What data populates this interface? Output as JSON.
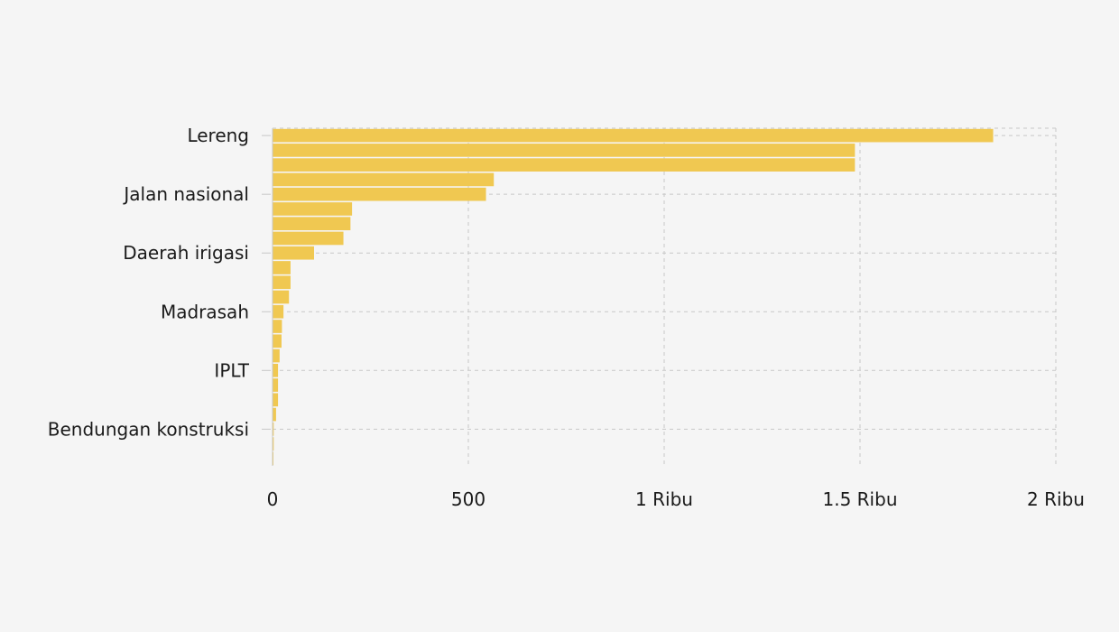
{
  "chart_data": {
    "type": "bar",
    "orientation": "horizontal",
    "categories": [
      "Lereng",
      "",
      "",
      "",
      "Jalan nasional",
      "",
      "",
      "",
      "Daerah irigasi",
      "",
      "",
      "",
      "Madrasah",
      "",
      "",
      "",
      "IPLT",
      "",
      "",
      "",
      "Bendungan konstruksi",
      "",
      ""
    ],
    "values": [
      1840,
      1487,
      1487,
      565,
      545,
      203,
      199,
      181,
      106,
      46,
      46,
      42,
      28,
      24,
      23,
      18,
      14,
      14,
      14,
      9,
      3,
      3,
      2
    ],
    "xlim": [
      0,
      2000
    ],
    "xticks": [
      0,
      500,
      1000,
      1500,
      2000
    ],
    "xtick_labels": [
      "0",
      "500",
      "1 Ribu",
      "1.5 Ribu",
      "2 Ribu"
    ],
    "title": "",
    "xlabel": "",
    "ylabel": "",
    "grid": true,
    "grid_style": "dashed",
    "legend": false,
    "colors": {
      "bar": "#f0c851",
      "background": "#f5f5f5",
      "grid": "#c8c8c8",
      "text": "#1a1a1a"
    }
  }
}
